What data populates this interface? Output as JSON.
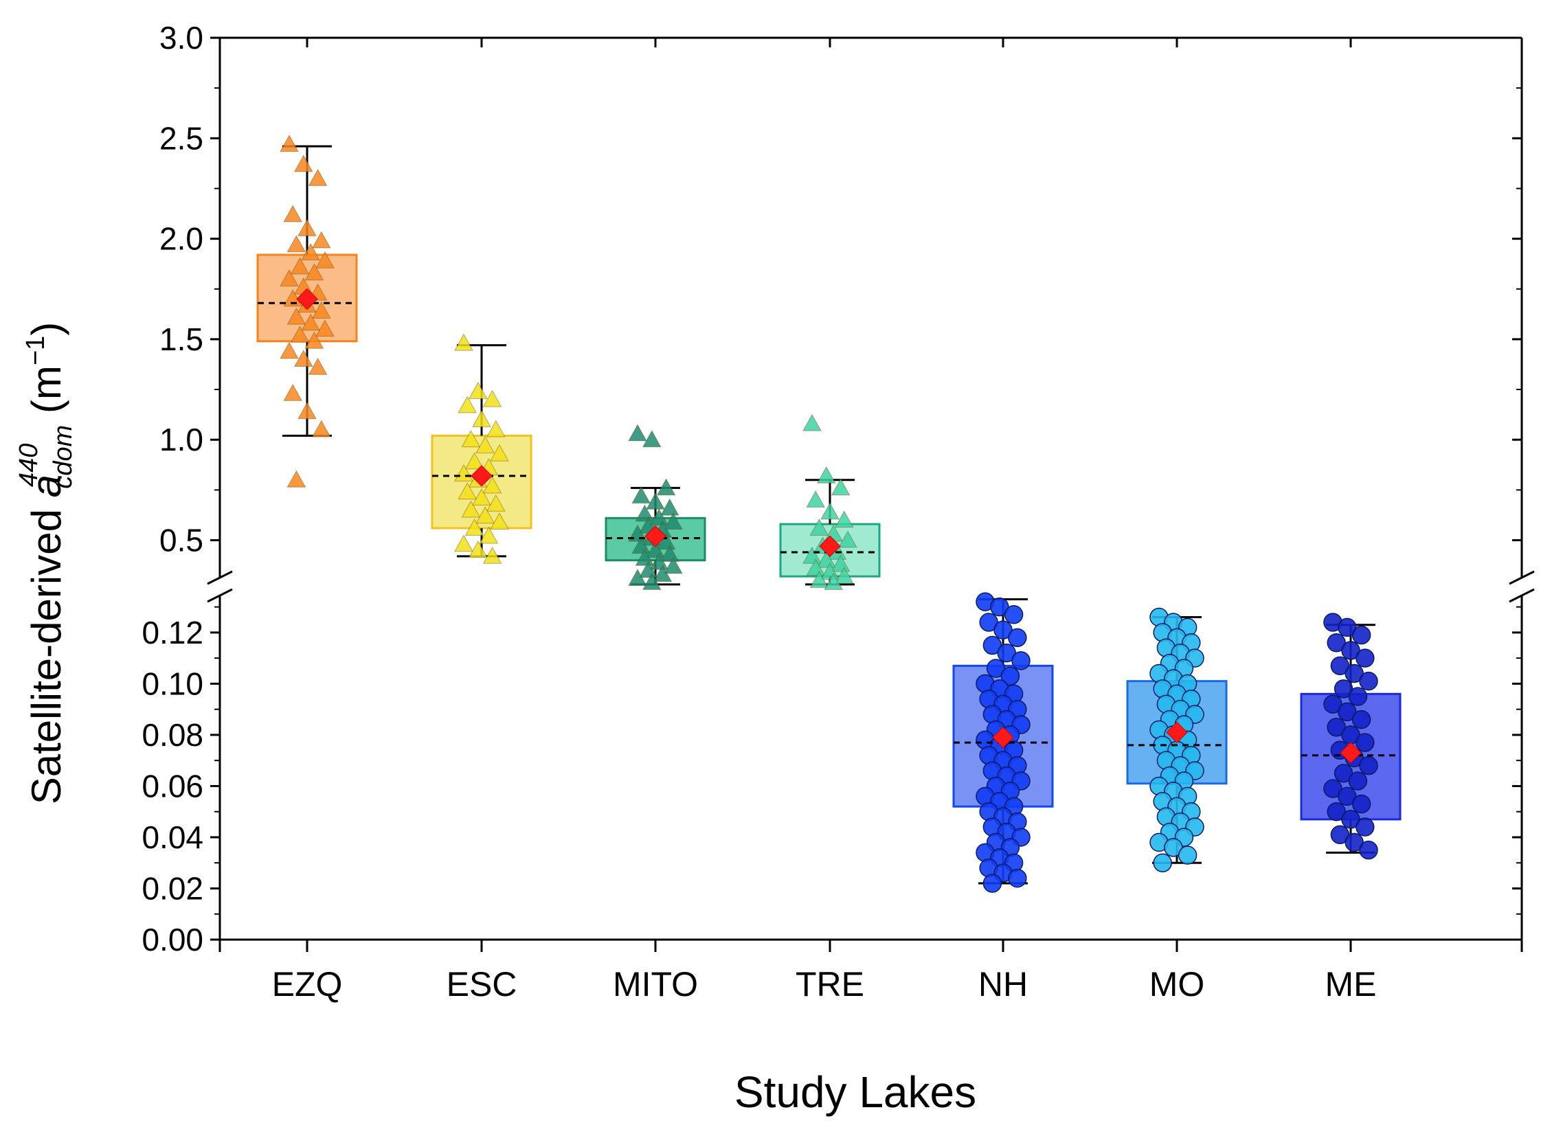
{
  "chart_data": {
    "type": "box",
    "title": "",
    "xlabel": "Study Lakes",
    "ylabel": {
      "prefix": "Satellite-derived ",
      "symbol": "a",
      "superscript": "440",
      "subscript": "cdom",
      "unit_open": " (m",
      "unit_exp": "−1",
      "unit_close": ")"
    },
    "broken_axis": true,
    "upper_segment": {
      "ylim": [
        0.3,
        3.0
      ],
      "ticks": [
        "0.5",
        "1.0",
        "1.5",
        "2.0",
        "2.5",
        "3.0"
      ]
    },
    "lower_segment": {
      "ylim": [
        0.0,
        0.135
      ],
      "ticks": [
        "0.00",
        "0.02",
        "0.04",
        "0.06",
        "0.08",
        "0.10",
        "0.12"
      ]
    },
    "categories": [
      "EZQ",
      "ESC",
      "MITO",
      "TRE",
      "NH",
      "MO",
      "ME"
    ],
    "mean_marker": {
      "shape": "diamond",
      "color": "#ff1a1a"
    },
    "median_line": "dashed",
    "series": [
      {
        "name": "EZQ",
        "segment": "upper",
        "marker": "triangle",
        "color": "#f7861f",
        "box_fill": "#fbb57a",
        "box_edge": "#f5841e",
        "whisker_low": 1.02,
        "q1": 1.49,
        "median": 1.68,
        "q3": 1.92,
        "whisker_high": 2.46,
        "mean": 1.7,
        "points": [
          2.47,
          2.37,
          2.3,
          2.12,
          2.05,
          1.99,
          1.97,
          1.93,
          1.89,
          1.86,
          1.83,
          1.8,
          1.76,
          1.73,
          1.7,
          1.67,
          1.64,
          1.61,
          1.58,
          1.55,
          1.52,
          1.49,
          1.44,
          1.4,
          1.36,
          1.23,
          1.14,
          1.05,
          0.8
        ]
      },
      {
        "name": "ESC",
        "segment": "upper",
        "marker": "triangle",
        "color": "#f2e018",
        "box_fill": "#f3e77a",
        "box_edge": "#f2c31c",
        "whisker_low": 0.42,
        "q1": 0.56,
        "median": 0.82,
        "q3": 1.02,
        "whisker_high": 1.47,
        "mean": 0.82,
        "points": [
          1.48,
          1.24,
          1.2,
          1.17,
          1.1,
          1.05,
          1.0,
          0.97,
          0.93,
          0.89,
          0.86,
          0.83,
          0.8,
          0.77,
          0.74,
          0.71,
          0.68,
          0.65,
          0.62,
          0.59,
          0.56,
          0.52,
          0.48,
          0.45,
          0.42
        ]
      },
      {
        "name": "MITO",
        "segment": "upper",
        "marker": "triangle",
        "color": "#1e8b6f",
        "box_fill": "#49c59b",
        "box_edge": "#1b8a68",
        "whisker_low": 0.28,
        "q1": 0.4,
        "median": 0.51,
        "q3": 0.61,
        "whisker_high": 0.76,
        "mean": 0.52,
        "points": [
          1.03,
          1.0,
          0.76,
          0.72,
          0.69,
          0.66,
          0.63,
          0.61,
          0.59,
          0.57,
          0.55,
          0.53,
          0.51,
          0.49,
          0.47,
          0.45,
          0.43,
          0.41,
          0.39,
          0.37,
          0.35,
          0.33,
          0.31,
          0.29
        ]
      },
      {
        "name": "TRE",
        "segment": "upper",
        "marker": "triangle",
        "color": "#40d2a3",
        "box_fill": "#97e8cd",
        "box_edge": "#1aa882",
        "whisker_low": 0.28,
        "q1": 0.32,
        "median": 0.44,
        "q3": 0.58,
        "whisker_high": 0.8,
        "mean": 0.47,
        "points": [
          1.08,
          0.82,
          0.76,
          0.7,
          0.64,
          0.6,
          0.56,
          0.53,
          0.5,
          0.47,
          0.44,
          0.42,
          0.4,
          0.38,
          0.36,
          0.34,
          0.32,
          0.3,
          0.29
        ]
      },
      {
        "name": "NH",
        "segment": "lower",
        "marker": "circle",
        "color": "#0f3cf5",
        "box_fill": "#6a86f3",
        "box_edge": "#1148f0",
        "whisker_low": 0.022,
        "q1": 0.052,
        "median": 0.077,
        "q3": 0.107,
        "whisker_high": 0.133,
        "mean": 0.079,
        "points": [
          0.132,
          0.13,
          0.127,
          0.124,
          0.121,
          0.118,
          0.115,
          0.112,
          0.109,
          0.106,
          0.103,
          0.1,
          0.098,
          0.096,
          0.094,
          0.092,
          0.09,
          0.088,
          0.086,
          0.084,
          0.082,
          0.08,
          0.078,
          0.076,
          0.074,
          0.072,
          0.07,
          0.068,
          0.066,
          0.064,
          0.062,
          0.06,
          0.058,
          0.056,
          0.054,
          0.052,
          0.05,
          0.048,
          0.046,
          0.044,
          0.042,
          0.04,
          0.038,
          0.036,
          0.034,
          0.032,
          0.03,
          0.028,
          0.026,
          0.024,
          0.022
        ]
      },
      {
        "name": "MO",
        "segment": "lower",
        "marker": "circle",
        "color": "#25b8ef",
        "box_fill": "#54a9f0",
        "box_edge": "#1a6ae6",
        "whisker_low": 0.03,
        "q1": 0.061,
        "median": 0.076,
        "q3": 0.101,
        "whisker_high": 0.126,
        "mean": 0.081,
        "points": [
          0.126,
          0.124,
          0.122,
          0.12,
          0.118,
          0.116,
          0.114,
          0.112,
          0.11,
          0.108,
          0.106,
          0.104,
          0.102,
          0.1,
          0.098,
          0.096,
          0.094,
          0.092,
          0.09,
          0.088,
          0.086,
          0.084,
          0.082,
          0.08,
          0.078,
          0.076,
          0.074,
          0.072,
          0.07,
          0.068,
          0.066,
          0.064,
          0.062,
          0.06,
          0.058,
          0.056,
          0.054,
          0.052,
          0.05,
          0.048,
          0.046,
          0.044,
          0.042,
          0.04,
          0.038,
          0.036,
          0.033,
          0.03
        ]
      },
      {
        "name": "ME",
        "segment": "lower",
        "marker": "circle",
        "color": "#1422c8",
        "box_fill": "#4a58ee",
        "box_edge": "#1a2ad9",
        "whisker_low": 0.034,
        "q1": 0.047,
        "median": 0.072,
        "q3": 0.096,
        "whisker_high": 0.123,
        "mean": 0.073,
        "points": [
          0.124,
          0.122,
          0.119,
          0.116,
          0.113,
          0.11,
          0.107,
          0.104,
          0.101,
          0.098,
          0.095,
          0.092,
          0.089,
          0.086,
          0.083,
          0.08,
          0.077,
          0.074,
          0.071,
          0.068,
          0.065,
          0.062,
          0.059,
          0.056,
          0.053,
          0.05,
          0.047,
          0.044,
          0.041,
          0.038,
          0.035
        ]
      }
    ]
  }
}
